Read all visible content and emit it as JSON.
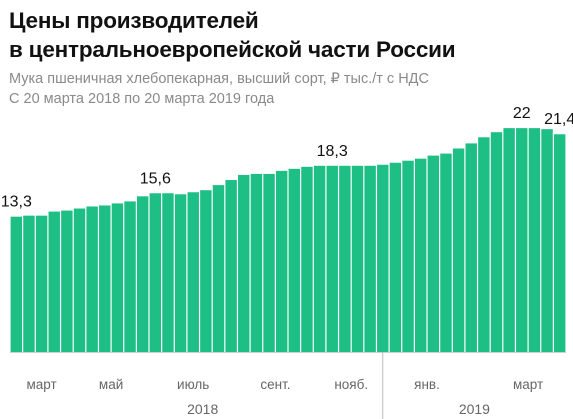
{
  "title_line1": "Цены производителей",
  "title_line2": "в центральноевропейской части России",
  "subtitle_line1": "Мука пшеничная хлебопекарная, высший сорт, ₽ тыс./т с НДС",
  "subtitle_line2": "С 20 марта 2018 по 20 марта 2019 года",
  "colors": {
    "bar": "#1dbf85",
    "axis": "#cfcfcf",
    "separator": "#bdbdbd"
  },
  "chart_data": {
    "type": "bar",
    "values": [
      13.3,
      13.4,
      13.4,
      13.8,
      13.9,
      14.1,
      14.3,
      14.4,
      14.6,
      14.8,
      15.3,
      15.6,
      15.6,
      15.5,
      15.7,
      15.9,
      16.4,
      16.9,
      17.4,
      17.5,
      17.5,
      17.8,
      18.0,
      18.2,
      18.3,
      18.3,
      18.3,
      18.3,
      18.3,
      18.4,
      18.6,
      18.8,
      19.0,
      19.3,
      19.5,
      20.0,
      20.5,
      21.1,
      21.6,
      22.0,
      22.0,
      22.0,
      21.9,
      21.4
    ],
    "ylim": [
      0,
      22.8
    ],
    "data_labels": [
      {
        "index": 0,
        "text": "13,3"
      },
      {
        "index": 11,
        "text": "15,6"
      },
      {
        "index": 25,
        "text": "18,3"
      },
      {
        "index": 40,
        "text": "22"
      },
      {
        "index": 43,
        "text": "21,4"
      }
    ],
    "x_ticks": [
      {
        "index": 2,
        "label": "март"
      },
      {
        "index": 7.5,
        "label": "май"
      },
      {
        "index": 14,
        "label": "июль"
      },
      {
        "index": 20.5,
        "label": "сент."
      },
      {
        "index": 26.5,
        "label": "нояб."
      },
      {
        "index": 32.5,
        "label": "янв."
      },
      {
        "index": 40.5,
        "label": "март"
      }
    ],
    "year_labels": [
      {
        "from": 0,
        "to": 29.5,
        "label": "2018"
      },
      {
        "from": 29.5,
        "to": 43,
        "label": "2019"
      }
    ],
    "year_separator_index": 29.5
  }
}
